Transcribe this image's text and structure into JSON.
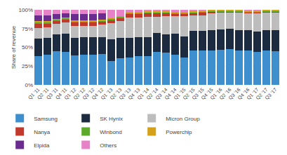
{
  "chart_data": {
    "type": "bar",
    "stacked": true,
    "ylabel": "Share of revenue",
    "categories": [
      "Q1 '11",
      "Q2 '11",
      "Q3 '11",
      "Q4 '11",
      "Q1 '12",
      "Q2 '12",
      "Q3 '12",
      "Q4 '12",
      "Q1 '13",
      "Q2 '13",
      "Q3 '13",
      "Q4 '13",
      "Q1 '14",
      "Q2 '14",
      "Q3 '14",
      "Q4 '14",
      "Q1 '15",
      "Q2 '15",
      "Q3 '15",
      "Q4 '15",
      "Q1 '16",
      "Q2 '16",
      "Q3 '16",
      "Q4 '16",
      "Q1 '17",
      "Q2 '17",
      "Q3 '17"
    ],
    "series": [
      {
        "name": "Samsung",
        "color": "#3d8fce",
        "values": [
          38,
          40,
          45,
          44,
          39,
          40,
          40,
          41,
          32,
          36,
          37,
          38,
          38,
          44,
          43,
          40,
          37,
          46,
          46,
          46,
          47,
          48,
          46,
          46,
          44,
          46,
          45
        ]
      },
      {
        "name": "SK Hynix",
        "color": "#1c2b40",
        "values": [
          24,
          23,
          22,
          24,
          24,
          24,
          24,
          23,
          29,
          27,
          26,
          26,
          26,
          25,
          24,
          28,
          28,
          26,
          26,
          27,
          27,
          27,
          27,
          27,
          27,
          27,
          28
        ]
      },
      {
        "name": "Micron Group",
        "color": "#bdbdbd",
        "values": [
          14,
          14,
          14,
          15,
          16,
          15,
          15,
          16,
          21,
          22,
          27,
          26,
          27,
          22,
          25,
          24,
          27,
          21,
          21,
          22,
          22,
          21,
          23,
          22,
          24,
          23,
          23
        ]
      },
      {
        "name": "Nanya",
        "color": "#c0392b",
        "values": [
          5,
          4,
          4,
          4,
          4,
          4,
          4,
          4,
          4,
          4,
          4,
          4,
          4,
          4,
          4,
          3,
          3,
          3,
          3,
          3,
          2,
          2,
          2,
          2,
          2,
          2,
          2
        ]
      },
      {
        "name": "Winbond",
        "color": "#5daa2a",
        "values": [
          2,
          2,
          2,
          2,
          2,
          2,
          2,
          2,
          2,
          2,
          2,
          2,
          2,
          2,
          1,
          1,
          1,
          1,
          2,
          1,
          1,
          1,
          1,
          1,
          1,
          1,
          1
        ]
      },
      {
        "name": "Powerchip",
        "color": "#d4a017",
        "values": [
          2,
          2,
          1,
          1,
          1,
          1,
          1,
          1,
          1,
          1,
          1,
          1,
          1,
          1,
          1,
          1,
          1,
          1,
          1,
          1,
          1,
          1,
          1,
          1,
          1,
          1,
          1
        ]
      },
      {
        "name": "Elpida",
        "color": "#6a2d8f",
        "values": [
          8,
          8,
          6,
          5,
          8,
          8,
          8,
          8,
          0,
          0,
          0,
          0,
          0,
          0,
          0,
          0,
          0,
          0,
          0,
          0,
          0,
          0,
          0,
          0,
          0,
          0,
          0
        ]
      },
      {
        "name": "Others",
        "color": "#e882c8",
        "values": [
          7,
          7,
          6,
          5,
          6,
          6,
          6,
          5,
          11,
          8,
          3,
          3,
          2,
          2,
          2,
          3,
          3,
          2,
          1,
          0,
          0,
          0,
          0,
          1,
          1,
          0,
          0
        ]
      }
    ],
    "ylim": [
      0,
      100
    ],
    "yticks": [
      {
        "value": 0,
        "label": "0%"
      },
      {
        "value": 25,
        "label": "25%"
      },
      {
        "value": 50,
        "label": "50%"
      },
      {
        "value": 75,
        "label": "75%"
      },
      {
        "value": 100,
        "label": "100%"
      }
    ],
    "grid": true,
    "legend": "bottom"
  }
}
